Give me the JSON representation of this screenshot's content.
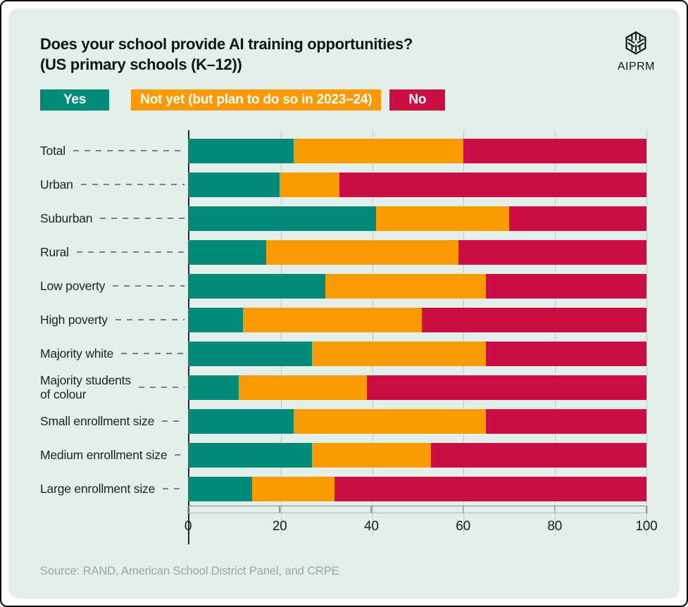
{
  "header": {
    "title_line1": "Does your school provide AI training opportunities?",
    "title_line2": "(US primary schools (K–12))",
    "logo_text": "AIPRM"
  },
  "legend": [
    {
      "label": "Yes",
      "color": "#008a78"
    },
    {
      "label": "Not yet (but plan to do so in 2023–24)",
      "color": "#fa9a00"
    },
    {
      "label": "No",
      "color": "#cc0e44"
    }
  ],
  "chart_data": {
    "type": "bar",
    "orientation": "horizontal",
    "stacked": true,
    "title": "Does your school provide AI training opportunities? (US primary schools (K–12))",
    "categories": [
      "Total",
      "Urban",
      "Suburban",
      "Rural",
      "Low poverty",
      "High poverty",
      "Majority white",
      "Majority students\nof colour",
      "Small enrollment size",
      "Medium enrollment size",
      "Large enrollment size"
    ],
    "series": [
      {
        "name": "Yes",
        "color": "#008a78",
        "values": [
          23,
          20,
          41,
          17,
          30,
          12,
          27,
          11,
          23,
          27,
          14
        ]
      },
      {
        "name": "Not yet (but plan to do so in 2023–24)",
        "color": "#fa9a00",
        "values": [
          37,
          13,
          29,
          42,
          35,
          39,
          38,
          28,
          42,
          26,
          18
        ]
      },
      {
        "name": "No",
        "color": "#cc0e44",
        "values": [
          40,
          67,
          30,
          41,
          35,
          49,
          35,
          61,
          35,
          47,
          68
        ]
      }
    ],
    "x_ticks": [
      0,
      20,
      40,
      60,
      80,
      100
    ],
    "xlim": [
      0,
      100
    ],
    "grid": true,
    "legend_position": "top",
    "xlabel": "",
    "ylabel": ""
  },
  "footer": {
    "source": "Source: RAND, American School District Panel, and CRPE"
  },
  "colors": {
    "background_card": "#e3f0ea",
    "frame_border": "#000000",
    "yes": "#008a78",
    "not_yet": "#fa9a00",
    "no": "#cc0e44",
    "source_text": "#96a8a2"
  }
}
